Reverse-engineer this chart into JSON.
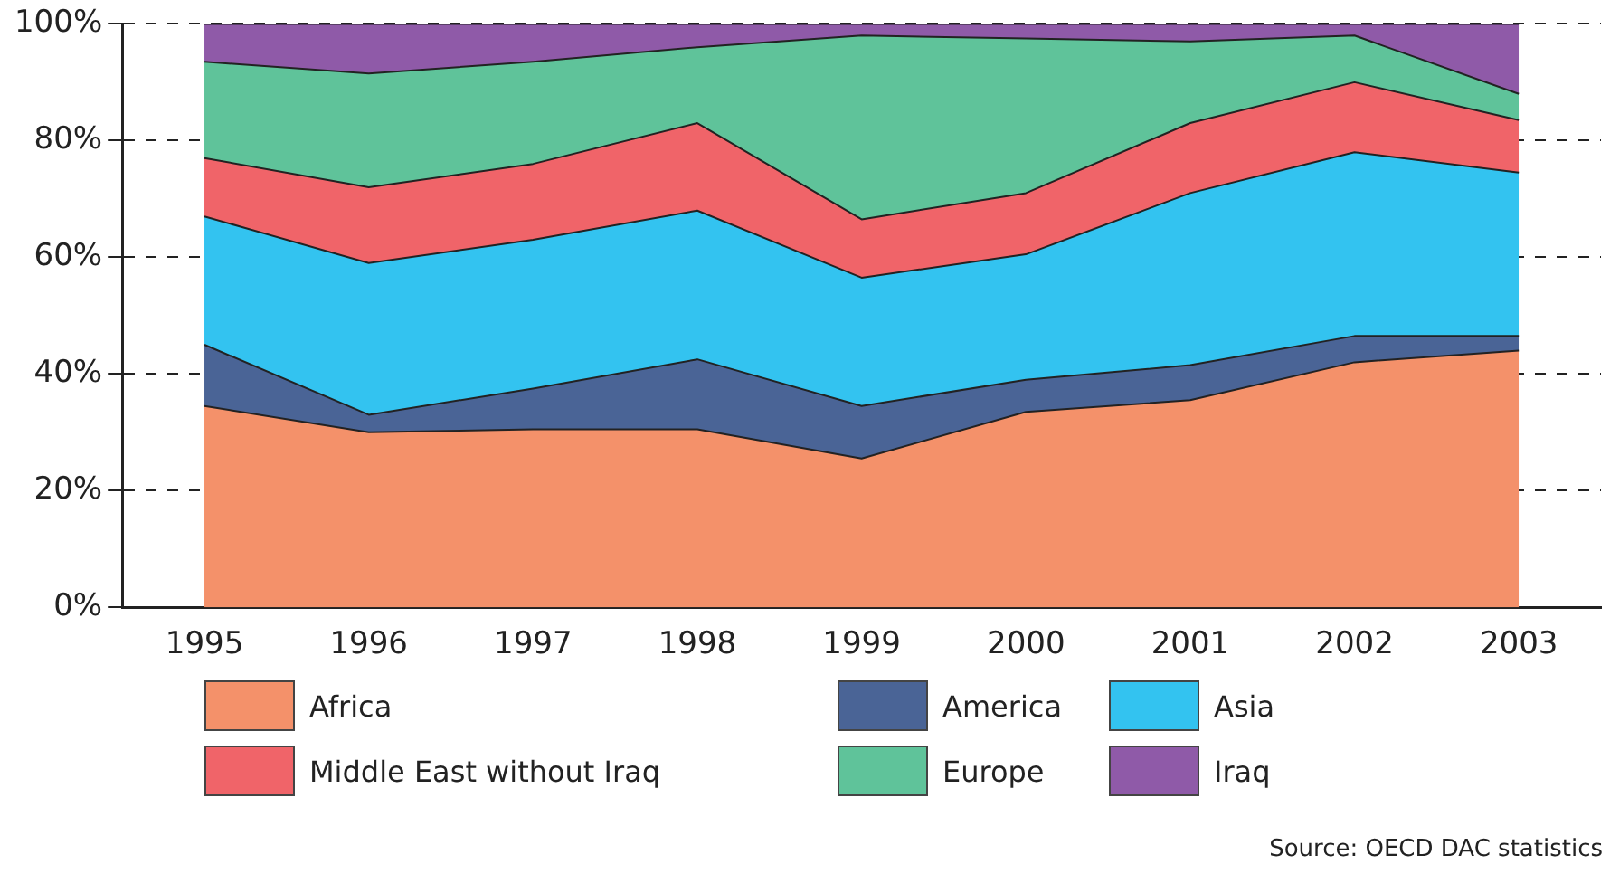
{
  "chart_data": {
    "type": "area",
    "stacked": true,
    "categories": [
      "1995",
      "1996",
      "1997",
      "1998",
      "1999",
      "2000",
      "2001",
      "2002",
      "2003"
    ],
    "series": [
      {
        "name": "Africa",
        "color": "#f4916a",
        "values": [
          34.5,
          30,
          30.5,
          30.5,
          25.5,
          33.5,
          35.5,
          42,
          44
        ]
      },
      {
        "name": "America",
        "color": "#4a6496",
        "values": [
          10.5,
          3,
          7,
          12,
          9,
          5.5,
          6,
          4.5,
          2.5
        ]
      },
      {
        "name": "Asia",
        "color": "#33c3f0",
        "values": [
          22,
          26,
          25.5,
          25.5,
          22,
          21.5,
          29.5,
          31.5,
          28
        ]
      },
      {
        "name": "Middle East without Iraq",
        "color": "#f06469",
        "values": [
          10,
          13,
          13,
          15,
          10,
          10.5,
          12,
          12,
          9
        ]
      },
      {
        "name": "Europe",
        "color": "#5fc39a",
        "values": [
          16.5,
          19.5,
          17.5,
          13,
          31.5,
          26.5,
          14,
          8,
          4.5
        ]
      },
      {
        "name": "Iraq",
        "color": "#8f5aa8",
        "values": [
          6.5,
          8.5,
          6.5,
          4,
          2,
          2.5,
          3,
          2,
          12
        ]
      }
    ],
    "ylim": [
      0,
      100
    ],
    "yticks": [
      {
        "value": 0,
        "label": "0%"
      },
      {
        "value": 20,
        "label": "20%"
      },
      {
        "value": 40,
        "label": "40%"
      },
      {
        "value": 60,
        "label": "60%"
      },
      {
        "value": 80,
        "label": "80%"
      },
      {
        "value": 100,
        "label": "100%"
      }
    ],
    "grid": "y",
    "line_style": "dashed",
    "legend": "bottom",
    "annotations": [
      "Source: OECD DAC statistics"
    ]
  }
}
